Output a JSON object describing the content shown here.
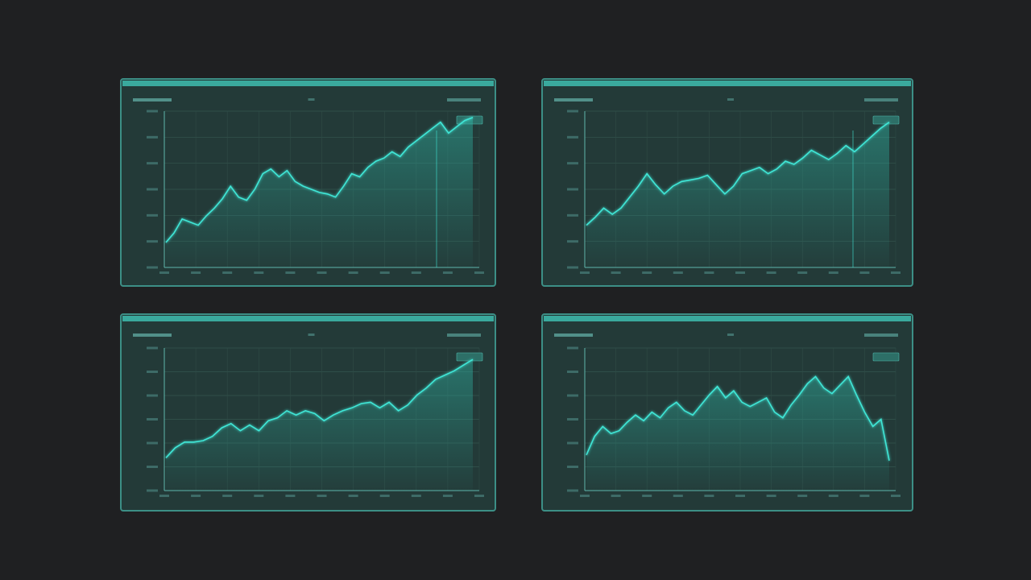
{
  "chart_data": [
    {
      "type": "line",
      "color": "#3fe6d6",
      "ylim": [
        0,
        100
      ],
      "values": [
        16,
        22,
        31,
        29,
        27,
        33,
        38,
        44,
        52,
        45,
        43,
        50,
        60,
        63,
        58,
        62,
        55,
        52,
        50,
        48,
        47,
        45,
        52,
        60,
        58,
        64,
        68,
        70,
        74,
        71,
        77,
        81,
        85,
        89,
        93,
        86,
        90,
        94,
        96
      ]
    },
    {
      "type": "line",
      "color": "#3fe6d6",
      "ylim": [
        0,
        100
      ],
      "values": [
        27,
        32,
        38,
        34,
        38,
        45,
        52,
        60,
        53,
        47,
        52,
        55,
        56,
        57,
        59,
        53,
        47,
        52,
        60,
        62,
        64,
        60,
        63,
        68,
        66,
        70,
        75,
        72,
        69,
        73,
        78,
        74,
        79,
        84,
        89,
        93
      ]
    },
    {
      "type": "line",
      "color": "#3fe6d6",
      "ylim": [
        0,
        100
      ],
      "values": [
        23,
        30,
        34,
        34,
        35,
        38,
        44,
        47,
        42,
        46,
        42,
        49,
        51,
        56,
        53,
        56,
        54,
        49,
        53,
        56,
        58,
        61,
        62,
        58,
        62,
        56,
        60,
        67,
        72,
        78,
        81,
        84,
        88,
        92
      ]
    },
    {
      "type": "line",
      "color": "#3fe6d6",
      "ylim": [
        0,
        100
      ],
      "values": [
        25,
        38,
        45,
        40,
        42,
        48,
        53,
        49,
        55,
        51,
        58,
        62,
        56,
        53,
        60,
        67,
        73,
        65,
        70,
        62,
        59,
        62,
        65,
        55,
        51,
        60,
        67,
        75,
        80,
        72,
        68,
        74,
        80,
        67,
        55,
        45,
        50,
        21
      ]
    }
  ]
}
